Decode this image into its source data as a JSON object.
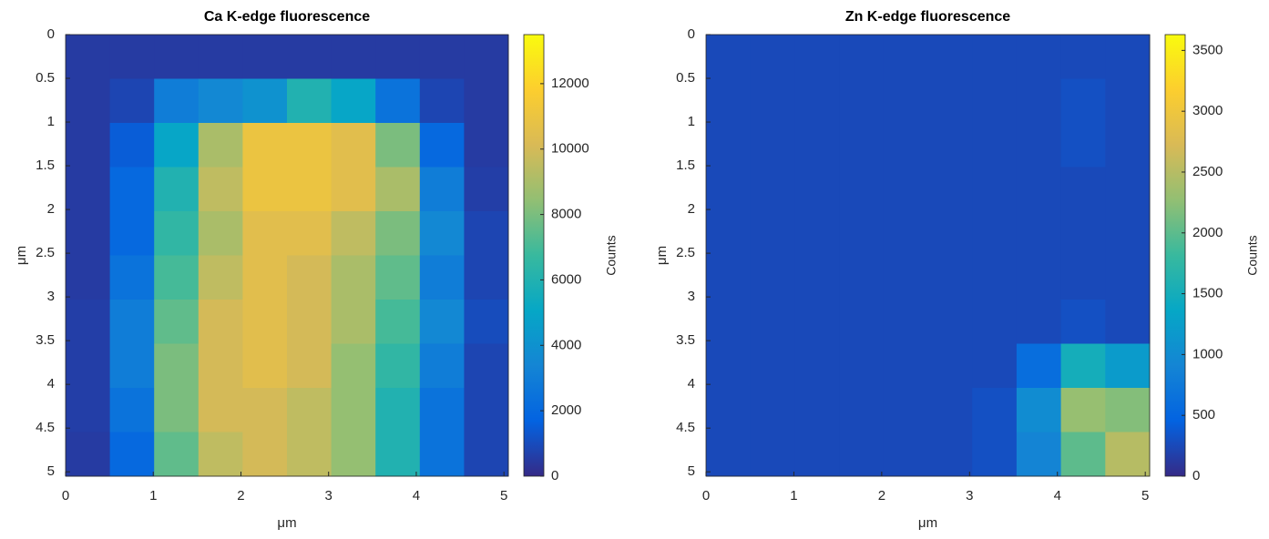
{
  "chart_data": [
    {
      "type": "heatmap",
      "title": "Ca K-edge fluorescence",
      "xlabel": "μm",
      "ylabel": "μm",
      "xlim": [
        0,
        5.05
      ],
      "ylim": [
        0,
        5.05
      ],
      "y_reversed": true,
      "xticks": [
        0,
        1,
        2,
        3,
        4,
        5
      ],
      "yticks": [
        0,
        0.5,
        1,
        1.5,
        2,
        2.5,
        3,
        3.5,
        4,
        4.5,
        5
      ],
      "z": [
        [
          500,
          500,
          500,
          500,
          500,
          500,
          500,
          500,
          500,
          500
        ],
        [
          500,
          800,
          3000,
          3500,
          4000,
          6000,
          5000,
          2500,
          800,
          500
        ],
        [
          500,
          1500,
          5000,
          9000,
          11000,
          11000,
          10500,
          8000,
          2000,
          500
        ],
        [
          500,
          2000,
          6000,
          9500,
          11000,
          11000,
          10500,
          9000,
          3000,
          600
        ],
        [
          500,
          2000,
          6500,
          9000,
          10500,
          10500,
          9500,
          8000,
          3500,
          800
        ],
        [
          500,
          2500,
          7000,
          9500,
          10500,
          10000,
          9000,
          7500,
          3000,
          800
        ],
        [
          600,
          3000,
          7500,
          10000,
          10500,
          10000,
          9000,
          7000,
          3500,
          1000
        ],
        [
          600,
          3000,
          8000,
          10000,
          10500,
          10000,
          8500,
          6500,
          3000,
          800
        ],
        [
          600,
          2500,
          8000,
          10000,
          10000,
          9500,
          8500,
          6000,
          2500,
          800
        ],
        [
          500,
          2000,
          7500,
          9500,
          10000,
          9500,
          8500,
          6000,
          2500,
          800
        ]
      ],
      "clim": [
        0,
        13500
      ],
      "cticks": [
        0,
        2000,
        4000,
        6000,
        8000,
        10000,
        12000
      ],
      "clabel": "Counts",
      "colormap": [
        "#352a87",
        "#0363e1",
        "#1485d4",
        "#06a7c6",
        "#38b99e",
        "#92bf73",
        "#d9ba56",
        "#fcce2e",
        "#f9fb0e"
      ]
    },
    {
      "type": "heatmap",
      "title": "Zn K-edge fluorescence",
      "xlabel": "μm",
      "ylabel": "μm",
      "xlim": [
        0,
        5.05
      ],
      "ylim": [
        0,
        5.05
      ],
      "y_reversed": true,
      "xticks": [
        0,
        1,
        2,
        3,
        4,
        5
      ],
      "yticks": [
        0,
        0.5,
        1,
        1.5,
        2,
        2.5,
        3,
        3.5,
        4,
        4.5,
        5
      ],
      "z": [
        [
          250,
          250,
          250,
          250,
          250,
          250,
          250,
          250,
          250,
          250
        ],
        [
          250,
          250,
          250,
          250,
          250,
          250,
          250,
          250,
          300,
          250
        ],
        [
          250,
          250,
          250,
          250,
          250,
          250,
          250,
          250,
          300,
          250
        ],
        [
          250,
          250,
          250,
          250,
          250,
          250,
          250,
          250,
          250,
          250
        ],
        [
          250,
          250,
          250,
          250,
          250,
          250,
          250,
          250,
          250,
          250
        ],
        [
          250,
          250,
          250,
          250,
          250,
          250,
          250,
          250,
          250,
          250
        ],
        [
          250,
          250,
          250,
          250,
          250,
          250,
          250,
          250,
          300,
          250
        ],
        [
          250,
          250,
          250,
          250,
          250,
          250,
          250,
          600,
          1500,
          1200
        ],
        [
          250,
          250,
          250,
          250,
          250,
          250,
          300,
          1000,
          2300,
          2200
        ],
        [
          250,
          250,
          250,
          250,
          250,
          250,
          300,
          900,
          2000,
          2500
        ]
      ],
      "clim": [
        0,
        3630
      ],
      "cticks": [
        0,
        500,
        1000,
        1500,
        2000,
        2500,
        3000,
        3500
      ],
      "clabel": "Counts",
      "colormap": [
        "#352a87",
        "#0363e1",
        "#1485d4",
        "#06a7c6",
        "#38b99e",
        "#92bf73",
        "#d9ba56",
        "#fcce2e",
        "#f9fb0e"
      ]
    }
  ]
}
